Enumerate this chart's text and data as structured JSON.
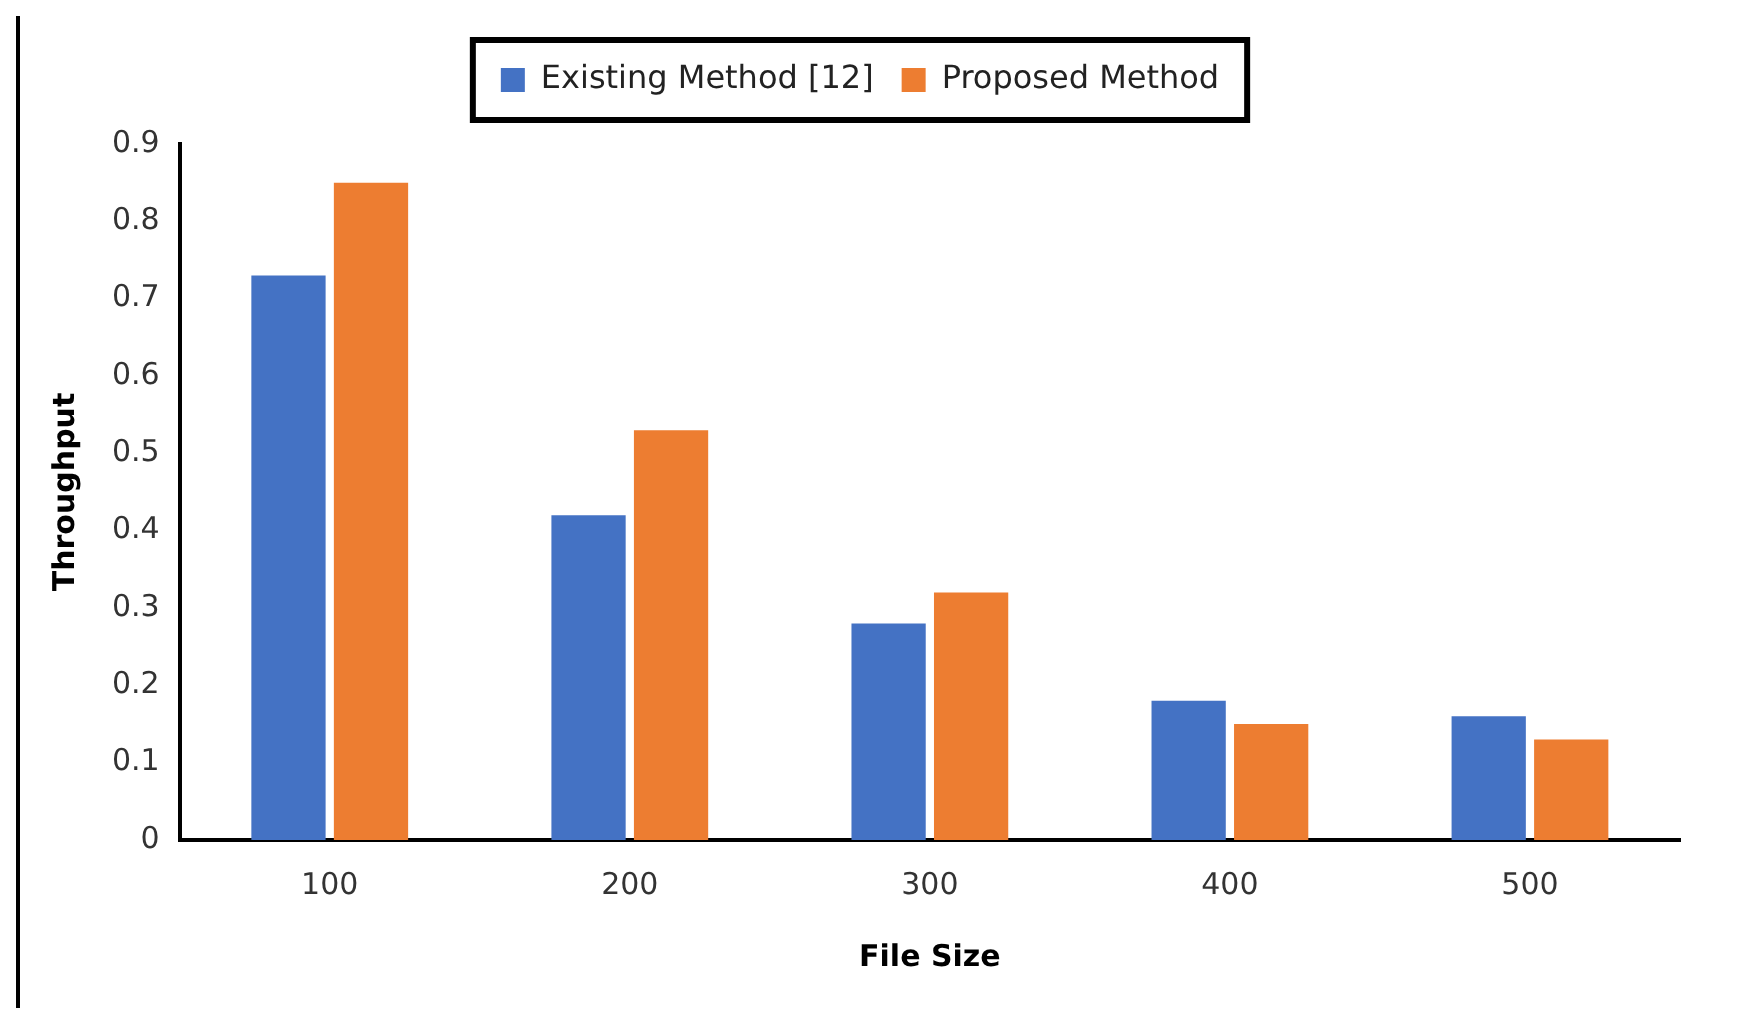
{
  "chart_data": {
    "type": "bar",
    "xlabel": "File Size",
    "ylabel": "Throughput",
    "categories": [
      "100",
      "200",
      "300",
      "400",
      "500"
    ],
    "series": [
      {
        "name": "Existing Method [12]",
        "color": "#4472c4",
        "values": [
          0.73,
          0.42,
          0.28,
          0.18,
          0.16
        ]
      },
      {
        "name": "Proposed Method",
        "color": "#ed7d31",
        "values": [
          0.85,
          0.53,
          0.32,
          0.15,
          0.13
        ]
      }
    ],
    "ylim": [
      0,
      0.9
    ],
    "yticks": [
      0,
      0.1,
      0.2,
      0.3,
      0.4,
      0.5,
      0.6,
      0.7,
      0.8,
      0.9
    ],
    "grid": false,
    "legend": "top"
  }
}
